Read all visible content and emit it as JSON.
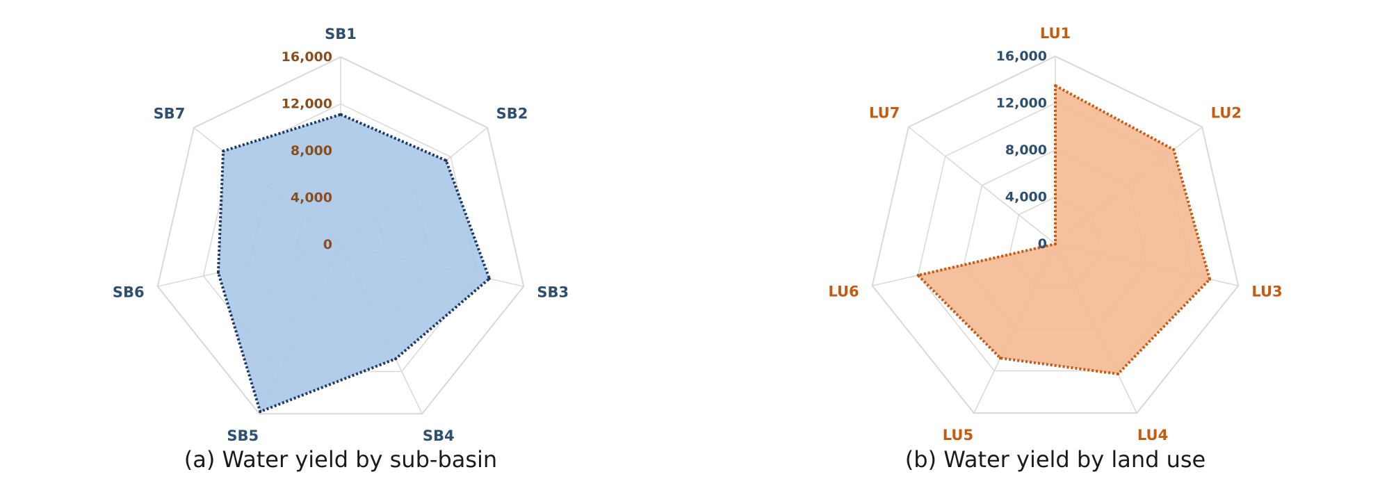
{
  "chart_data": [
    {
      "type": "radar",
      "caption": "(a) Water yield by sub-basin",
      "categories": [
        "SB1",
        "SB2",
        "SB3",
        "SB4",
        "SB5",
        "SB6",
        "SB7"
      ],
      "rlim": [
        0,
        16000
      ],
      "ticks": [
        0,
        4000,
        8000,
        12000,
        16000
      ],
      "tick_labels": [
        "0",
        "4,000",
        "8,000",
        "12,000",
        "16,000"
      ],
      "series": [
        {
          "values": [
            11100,
            11500,
            13000,
            10800,
            15800,
            10700,
            12800
          ]
        }
      ],
      "colors": {
        "fill": "#a9c8e8",
        "line": "#1f3864",
        "category_label": "#2e4f70",
        "tick_label": "#8a4e1e",
        "grid": "#d8d8d8"
      },
      "grid": true
    },
    {
      "type": "radar",
      "caption": "(b) Water yield by land use",
      "categories": [
        "LU1",
        "LU2",
        "LU3",
        "LU4",
        "LU5",
        "LU6",
        "LU7"
      ],
      "rlim": [
        0,
        16000
      ],
      "ticks": [
        0,
        4000,
        8000,
        12000,
        16000
      ],
      "tick_labels": [
        "0",
        "4,000",
        "8,000",
        "12,000",
        "16,000"
      ],
      "series": [
        {
          "values": [
            13500,
            12900,
            13500,
            12300,
            10800,
            12000,
            0
          ]
        }
      ],
      "colors": {
        "fill": "#f4b994",
        "line": "#c55a11",
        "category_label": "#c55a11",
        "tick_label": "#2e4f70",
        "grid": "#d8d8d8"
      },
      "grid": true
    }
  ]
}
